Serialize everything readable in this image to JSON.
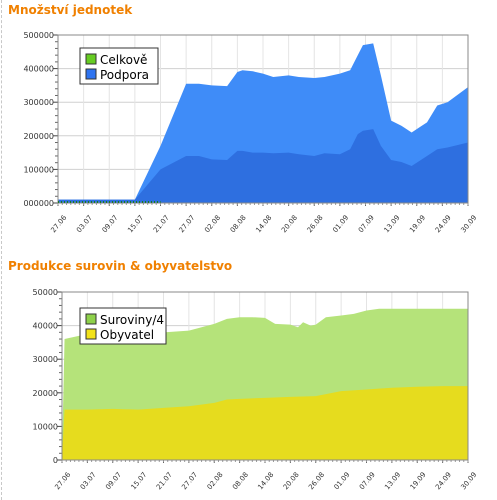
{
  "chart_data": [
    {
      "type": "area",
      "title": "Množství jednotek",
      "ylabel": "",
      "xlabel": "",
      "ylim": [
        0,
        500000
      ],
      "yticks": [
        "000000",
        "100000",
        "200000",
        "300000",
        "400000",
        "500000"
      ],
      "xticks": [
        "27.06",
        "03.07",
        "09.07",
        "15.07",
        "21.07",
        "27.07",
        "02.08",
        "08.08",
        "14.08",
        "20.08",
        "26.08",
        "01.09",
        "07.09",
        "13.09",
        "19.09",
        "24.09",
        "30.09"
      ],
      "legend_position": "top-left",
      "grid": true,
      "colors": {
        "Celkově": "#2e6fe0",
        "Podpora": "#3f8cf8"
      },
      "series": [
        {
          "name": "Podpora",
          "x": [
            0,
            1,
            2,
            3,
            4,
            5,
            5.5,
            6,
            6.6,
            7,
            7.2,
            7.6,
            8,
            8.4,
            9,
            9.4,
            10,
            10.4,
            11,
            11.4,
            11.7,
            11.9,
            12.3,
            12.6,
            13,
            13.4,
            13.8,
            14.4,
            14.8,
            15.2,
            16
          ],
          "values": [
            10000,
            10000,
            10000,
            10000,
            170000,
            355000,
            355000,
            350000,
            348000,
            390000,
            395000,
            392000,
            385000,
            375000,
            380000,
            375000,
            372000,
            375000,
            385000,
            395000,
            440000,
            470000,
            475000,
            380000,
            245000,
            230000,
            210000,
            240000,
            290000,
            300000,
            345000
          ]
        },
        {
          "name": "Celkově",
          "x": [
            0,
            1,
            2,
            3,
            4,
            5,
            5.5,
            6,
            6.6,
            7,
            7.2,
            7.6,
            8,
            8.4,
            9,
            9.4,
            10,
            10.4,
            11,
            11.4,
            11.7,
            11.9,
            12.3,
            12.6,
            13,
            13.4,
            13.8,
            14.4,
            14.8,
            15.2,
            16
          ],
          "values": [
            10000,
            10000,
            10000,
            10000,
            100000,
            140000,
            140000,
            130000,
            128000,
            155000,
            155000,
            150000,
            150000,
            148000,
            150000,
            145000,
            140000,
            148000,
            145000,
            160000,
            205000,
            215000,
            220000,
            170000,
            128000,
            122000,
            110000,
            140000,
            160000,
            165000,
            180000
          ]
        }
      ]
    },
    {
      "type": "area",
      "title": "Produkce surovin & obyvatelstvo",
      "ylabel": "",
      "xlabel": "",
      "ylim": [
        0,
        50000
      ],
      "yticks": [
        "0",
        "10000",
        "20000",
        "30000",
        "40000",
        "50000"
      ],
      "xticks": [
        "27.06",
        "03.07",
        "09.07",
        "15.07",
        "21.07",
        "27.07",
        "02.08",
        "08.08",
        "14.08",
        "20.08",
        "26.08",
        "01.09",
        "07.09",
        "13.09",
        "19.09",
        "24.09",
        "30.09"
      ],
      "legend_position": "top-left",
      "grid": true,
      "colors": {
        "Suroviny/4": "#b5e37a",
        "Obyvatel": "#e6dc1e"
      },
      "series": [
        {
          "name": "Suroviny/4",
          "x": [
            0,
            0.1,
            1,
            2,
            3,
            4,
            5,
            6,
            6.5,
            7,
            7.5,
            8,
            8.4,
            9,
            9.3,
            9.5,
            9.8,
            10,
            10.4,
            11,
            11.5,
            12,
            12.5,
            13,
            14,
            15,
            16
          ],
          "values": [
            1000,
            36000,
            37500,
            38000,
            38000,
            38000,
            38500,
            40500,
            42000,
            42500,
            42500,
            42300,
            40500,
            40300,
            39500,
            41000,
            40000,
            40300,
            42500,
            43000,
            43500,
            44500,
            45000,
            45000,
            45000,
            45000,
            45000
          ]
        },
        {
          "name": "Obyvatel",
          "x": [
            0,
            0.1,
            1,
            2,
            3,
            4,
            5,
            6,
            6.5,
            7,
            8,
            9,
            10,
            11,
            12,
            13,
            14,
            15,
            16
          ],
          "values": [
            1000,
            15000,
            15000,
            15200,
            15000,
            15500,
            16000,
            17000,
            18000,
            18200,
            18500,
            18800,
            19000,
            20500,
            21000,
            21500,
            21800,
            22000,
            22000
          ]
        }
      ]
    }
  ]
}
